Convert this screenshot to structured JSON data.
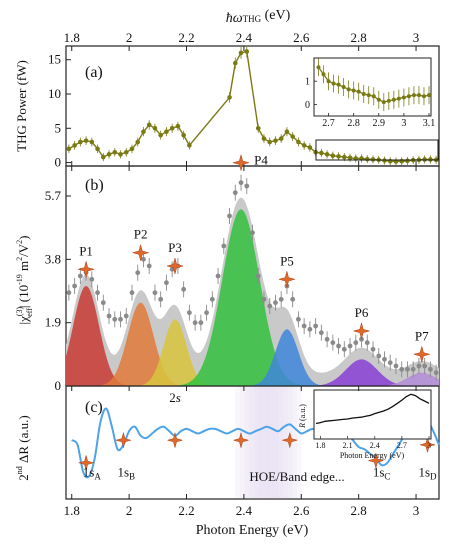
{
  "figure": {
    "top_axis_label": "ħω",
    "top_axis_label_sub": "THG",
    "top_axis_label_unit": " (eV)",
    "bottom_axis_label": "Photon Energy (eV)",
    "x_ticks": [
      "1.8",
      "2",
      "2.2",
      "2.4",
      "2.6",
      "2.8",
      "3"
    ]
  },
  "colors": {
    "olive": "#7a7a12",
    "gray_fill": "#c9c9c9",
    "gray_marker": "#8a8a8a",
    "star": "#e0692a",
    "blue_curve": "#4da3e8",
    "band_shade": "#e6ddf2"
  },
  "chart_data": [
    {
      "panel": "(a)",
      "type": "line",
      "ylabel": "THG Power (fW)",
      "xlim": [
        1.78,
        3.08
      ],
      "ylim": [
        -0.5,
        17
      ],
      "yticks": [
        "0",
        "5",
        "10",
        "15"
      ],
      "x": [
        1.79,
        1.81,
        1.83,
        1.85,
        1.87,
        1.89,
        1.91,
        1.93,
        1.95,
        1.97,
        1.99,
        2.01,
        2.03,
        2.05,
        2.07,
        2.09,
        2.11,
        2.13,
        2.15,
        2.17,
        2.19,
        2.21,
        2.35,
        2.37,
        2.39,
        2.41,
        2.45,
        2.47,
        2.49,
        2.51,
        2.53,
        2.55,
        2.57,
        2.59,
        2.61,
        2.63,
        2.65,
        2.67,
        2.69,
        2.71,
        2.73,
        2.75,
        2.77,
        2.79,
        2.81,
        2.83,
        2.85,
        2.87,
        2.89,
        2.91,
        2.93,
        2.95,
        2.97,
        2.99,
        3.01,
        3.03,
        3.05,
        3.07
      ],
      "y": [
        2.0,
        2.5,
        3.0,
        3.2,
        3.0,
        2.0,
        0.8,
        1.2,
        1.5,
        1.2,
        1.5,
        2.0,
        3.0,
        4.5,
        5.5,
        5.0,
        4.0,
        4.5,
        5.0,
        5.3,
        4.0,
        2.5,
        9.5,
        14.5,
        16.0,
        16.2,
        5.0,
        3.5,
        3.0,
        3.2,
        3.5,
        4.5,
        3.8,
        3.0,
        2.5,
        2.2,
        1.5,
        1.4,
        1.2,
        1.0,
        0.9,
        0.8,
        0.7,
        0.6,
        0.6,
        0.5,
        0.45,
        0.4,
        0.3,
        0.2,
        0.15,
        0.2,
        0.25,
        0.35,
        0.4,
        0.45,
        0.45,
        0.4
      ],
      "inset": {
        "xlim": [
          2.65,
          3.1
        ],
        "ylim": [
          -0.5,
          2.0
        ],
        "xticks": [
          "2.7",
          "2.8",
          "2.9",
          "3",
          "3.1"
        ],
        "yticks": [
          "0",
          "1"
        ],
        "x": [
          2.66,
          2.68,
          2.7,
          2.72,
          2.74,
          2.76,
          2.78,
          2.8,
          2.82,
          2.84,
          2.86,
          2.88,
          2.9,
          2.92,
          2.94,
          2.96,
          2.98,
          3.0,
          3.02,
          3.04,
          3.06,
          3.08,
          3.1
        ],
        "y": [
          1.6,
          1.3,
          1.0,
          0.9,
          0.85,
          0.75,
          0.65,
          0.6,
          0.55,
          0.45,
          0.4,
          0.35,
          0.2,
          0.1,
          0.15,
          0.2,
          0.25,
          0.3,
          0.35,
          0.4,
          0.4,
          0.35,
          0.4
        ]
      }
    },
    {
      "panel": "(b)",
      "type": "area",
      "ylabel": "|χ",
      "ylabel_sup": "(3)",
      "ylabel_sub": "eff",
      "ylabel_rest": "| (10",
      "ylabel_exp": "-19",
      "ylabel_unit": " m",
      "ylabel_unit_exp": "2",
      "ylabel_slash": "/V",
      "ylabel_tail": ")",
      "xlim": [
        1.78,
        3.08
      ],
      "ylim": [
        0,
        6.6
      ],
      "yticks": [
        "0",
        "1.9",
        "3.8",
        "5.7"
      ],
      "ytick_values": [
        0,
        1.9,
        3.8,
        5.7
      ],
      "peaks": [
        {
          "label": "P1",
          "center": 1.85,
          "height": 3.0,
          "width": 0.045,
          "color": "#c93b34"
        },
        {
          "label": "P2",
          "center": 2.04,
          "height": 2.5,
          "width": 0.045,
          "color": "#e07a3a"
        },
        {
          "label": "P3",
          "center": 2.16,
          "height": 2.0,
          "width": 0.04,
          "color": "#d8c43c"
        },
        {
          "label": "P4",
          "center": 2.39,
          "height": 5.3,
          "width": 0.065,
          "color": "#33c13e"
        },
        {
          "label": "P5",
          "center": 2.55,
          "height": 1.7,
          "width": 0.04,
          "color": "#3f86d9"
        },
        {
          "label": "P6",
          "center": 2.81,
          "height": 0.8,
          "width": 0.055,
          "color": "#8a3fd6"
        },
        {
          "label": "P7",
          "center": 3.02,
          "height": 0.4,
          "width": 0.05,
          "color": "#b48ddb"
        }
      ],
      "peak_label_y": [
        3.5,
        4.0,
        3.6,
        6.7,
        3.2,
        1.65,
        0.95
      ],
      "x": [
        1.79,
        1.81,
        1.83,
        1.85,
        1.87,
        1.89,
        1.91,
        1.93,
        1.95,
        1.97,
        1.99,
        2.01,
        2.03,
        2.05,
        2.07,
        2.09,
        2.11,
        2.13,
        2.15,
        2.17,
        2.19,
        2.21,
        2.23,
        2.25,
        2.27,
        2.29,
        2.31,
        2.33,
        2.35,
        2.37,
        2.39,
        2.41,
        2.43,
        2.45,
        2.47,
        2.49,
        2.51,
        2.53,
        2.55,
        2.57,
        2.59,
        2.61,
        2.63,
        2.65,
        2.67,
        2.69,
        2.71,
        2.73,
        2.75,
        2.77,
        2.79,
        2.81,
        2.83,
        2.85,
        2.87,
        2.89,
        2.91,
        2.93,
        2.95,
        2.97,
        2.99,
        3.01,
        3.03,
        3.05,
        3.07
      ],
      "y": [
        2.8,
        3.0,
        3.3,
        3.4,
        3.2,
        2.8,
        2.5,
        2.1,
        2.0,
        2.0,
        2.1,
        2.8,
        3.4,
        3.8,
        3.6,
        2.8,
        2.6,
        3.1,
        3.5,
        3.6,
        2.9,
        2.2,
        1.9,
        1.9,
        2.2,
        2.6,
        3.3,
        4.2,
        5.1,
        5.8,
        6.1,
        6.0,
        4.6,
        3.3,
        2.6,
        2.4,
        2.5,
        2.6,
        3.0,
        2.6,
        2.0,
        1.8,
        1.7,
        1.8,
        1.6,
        1.4,
        1.3,
        1.2,
        1.1,
        1.2,
        1.3,
        1.4,
        1.3,
        1.1,
        0.9,
        0.8,
        0.7,
        0.6,
        0.5,
        0.5,
        0.5,
        0.6,
        0.6,
        0.5,
        0.4
      ]
    },
    {
      "panel": "(c)",
      "type": "line",
      "ylabel": "2",
      "ylabel_sup": "nd",
      "ylabel_rest": " ΔR (a.u.)",
      "xlim": [
        1.78,
        3.08
      ],
      "ylim": [
        -1.5,
        1.0
      ],
      "x": [
        1.8,
        1.82,
        1.84,
        1.86,
        1.88,
        1.9,
        1.92,
        1.94,
        1.96,
        1.98,
        2.0,
        2.02,
        2.04,
        2.06,
        2.08,
        2.1,
        2.12,
        2.14,
        2.16,
        2.18,
        2.2,
        2.22,
        2.24,
        2.26,
        2.28,
        2.3,
        2.32,
        2.34,
        2.36,
        2.38,
        2.4,
        2.42,
        2.44,
        2.46,
        2.48,
        2.5,
        2.52,
        2.54,
        2.56,
        2.58,
        2.6,
        2.62,
        2.64,
        2.66,
        2.68,
        2.7,
        2.72,
        2.74,
        2.76,
        2.78,
        2.8,
        2.82,
        2.84,
        2.86,
        2.88,
        2.9,
        2.92,
        2.94,
        2.96,
        2.98,
        3.0,
        3.02,
        3.04,
        3.06,
        3.08
      ],
      "y": [
        -0.2,
        -0.3,
        -0.9,
        -1.0,
        -0.6,
        0.2,
        0.5,
        0.1,
        -0.4,
        -0.3,
        0.0,
        0.1,
        -0.1,
        -0.15,
        -0.05,
        0.05,
        0.1,
        0.0,
        -0.1,
        0.0,
        0.05,
        0.0,
        -0.05,
        0.0,
        0.05,
        0.05,
        0.0,
        -0.05,
        0.0,
        0.05,
        0.0,
        -0.05,
        0.0,
        0.05,
        0.1,
        0.05,
        0.0,
        0.1,
        0.15,
        0.05,
        -0.05,
        0.0,
        0.05,
        0.0,
        -0.05,
        -0.1,
        -0.05,
        0.0,
        -0.05,
        -0.2,
        -0.35,
        -0.4,
        -0.5,
        -0.6,
        -0.75,
        -0.7,
        -0.5,
        -0.3,
        -0.1,
        0.0,
        0.1,
        0.3,
        0.25,
        0.0,
        -0.3
      ],
      "band": [
        2.37,
        2.6
      ],
      "annotations": [
        {
          "x": 1.85,
          "star_y": -0.7,
          "main": "1s",
          "sub": "A",
          "text_y": -1.0,
          "text_dx": 0.02
        },
        {
          "x": 1.98,
          "star_y": -0.2,
          "main": "1s",
          "sub": "B",
          "text_y": -1.0,
          "text_dx": 0.01
        },
        {
          "x": 2.16,
          "star_y": -0.2,
          "main": "2",
          "sub": "",
          "italic": "s",
          "text_y": 0.65,
          "text_dx": 0.0
        },
        {
          "x": 2.39,
          "star_y": -0.2,
          "main": "",
          "sub": "",
          "text_y": 0,
          "text_dx": 0
        },
        {
          "x": 2.56,
          "star_y": -0.2,
          "main": "",
          "sub": "",
          "text_y": 0,
          "text_dx": 0
        },
        {
          "x": 2.86,
          "star_y": -0.65,
          "main": "1s",
          "sub": "C",
          "text_y": -1.0,
          "text_dx": 0.02
        },
        {
          "x": 3.04,
          "star_y": -0.3,
          "main": "1s",
          "sub": "D",
          "text_y": -1.0,
          "text_dx": 0.0
        }
      ],
      "band_label": "HOE/Band edge...",
      "inset": {
        "ylabel": "R",
        "ylabel_rest": " (a.u.)",
        "xlabel": "Photon Energy (eV)",
        "xlim": [
          1.75,
          3.0
        ],
        "ylim": [
          0,
          1.0
        ],
        "xticks": [
          "1.8",
          "2.1",
          "2.4",
          "2.7",
          "3"
        ],
        "x": [
          1.75,
          1.8,
          1.85,
          1.9,
          1.95,
          2.0,
          2.05,
          2.1,
          2.15,
          2.2,
          2.25,
          2.3,
          2.35,
          2.4,
          2.45,
          2.5,
          2.55,
          2.6,
          2.65,
          2.7,
          2.75,
          2.8,
          2.85,
          2.9,
          2.95,
          3.0
        ],
        "y": [
          0.3,
          0.32,
          0.35,
          0.36,
          0.37,
          0.38,
          0.39,
          0.4,
          0.42,
          0.43,
          0.44,
          0.46,
          0.48,
          0.52,
          0.55,
          0.58,
          0.62,
          0.68,
          0.75,
          0.82,
          0.9,
          0.95,
          0.92,
          0.85,
          0.8,
          0.75
        ]
      }
    }
  ]
}
